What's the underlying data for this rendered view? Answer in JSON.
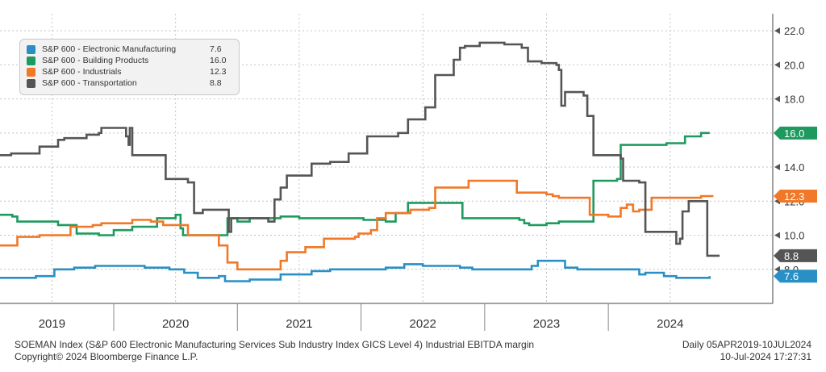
{
  "chart_data": {
    "type": "line",
    "title": "SOEMAN Index (S&P 600 Electronic Manufacturing Services Sub Industry Index GICS Level 4) Industrial EBITDA margin",
    "xlabel": "",
    "ylabel": "",
    "x_range": [
      2018.58,
      2024.83
    ],
    "ylim": [
      6.0,
      23.0
    ],
    "y_ticks": [
      8.0,
      10.0,
      12.0,
      14.0,
      16.0,
      18.0,
      20.0,
      22.0
    ],
    "y_tick_labels": [
      "8.0",
      "10.0",
      "12.0",
      "14.0",
      "16.0",
      "18.0",
      "20.0",
      "22.0"
    ],
    "x_tick_labels": [
      "2019",
      "2020",
      "2021",
      "2022",
      "2023",
      "2024"
    ],
    "x_label_positions": [
      2019.0,
      2020.0,
      2021.0,
      2022.0,
      2023.0,
      2024.0
    ],
    "year_boundaries": [
      2019.5,
      2020.5,
      2021.5,
      2022.5,
      2023.5
    ],
    "x_gridlines": [
      2019.0,
      2020.0,
      2021.0,
      2022.0,
      2023.0,
      2024.0
    ],
    "grid": true,
    "legend_position": "top-left",
    "series": [
      {
        "name": "S&P 600 - Electronic Manufacturing",
        "last": "7.6",
        "color": "#2a8fc4",
        "points": [
          [
            2018.58,
            7.5
          ],
          [
            2018.87,
            7.6
          ],
          [
            2019.02,
            8.0
          ],
          [
            2019.18,
            8.1
          ],
          [
            2019.35,
            8.2
          ],
          [
            2019.6,
            8.2
          ],
          [
            2019.75,
            8.1
          ],
          [
            2019.95,
            8.0
          ],
          [
            2020.07,
            7.8
          ],
          [
            2020.18,
            7.5
          ],
          [
            2020.35,
            7.6
          ],
          [
            2020.4,
            7.3
          ],
          [
            2020.6,
            7.4
          ],
          [
            2020.85,
            7.7
          ],
          [
            2021.1,
            7.9
          ],
          [
            2021.25,
            8.0
          ],
          [
            2021.55,
            8.0
          ],
          [
            2021.7,
            8.1
          ],
          [
            2021.85,
            8.3
          ],
          [
            2022.0,
            8.2
          ],
          [
            2022.3,
            8.1
          ],
          [
            2022.4,
            8.0
          ],
          [
            2022.7,
            8.0
          ],
          [
            2022.88,
            8.2
          ],
          [
            2022.93,
            8.5
          ],
          [
            2023.05,
            8.5
          ],
          [
            2023.15,
            8.1
          ],
          [
            2023.25,
            8.0
          ],
          [
            2023.55,
            8.0
          ],
          [
            2023.75,
            7.7
          ],
          [
            2023.8,
            7.8
          ],
          [
            2023.95,
            7.6
          ],
          [
            2024.05,
            7.5
          ],
          [
            2024.25,
            7.5
          ],
          [
            2024.32,
            7.6
          ]
        ]
      },
      {
        "name": "S&P 600 - Building Products",
        "last": "16.0",
        "color": "#1f9a5e",
        "points": [
          [
            2018.58,
            11.2
          ],
          [
            2018.68,
            11.1
          ],
          [
            2018.72,
            10.8
          ],
          [
            2018.9,
            10.8
          ],
          [
            2019.05,
            10.6
          ],
          [
            2019.2,
            10.1
          ],
          [
            2019.38,
            10.0
          ],
          [
            2019.5,
            10.3
          ],
          [
            2019.65,
            10.5
          ],
          [
            2019.85,
            11.0
          ],
          [
            2020.0,
            11.2
          ],
          [
            2020.04,
            10.4
          ],
          [
            2020.06,
            10.0
          ],
          [
            2020.3,
            10.0
          ],
          [
            2020.42,
            11.0
          ],
          [
            2020.5,
            10.8
          ],
          [
            2020.6,
            11.0
          ],
          [
            2020.75,
            11.0
          ],
          [
            2020.85,
            11.1
          ],
          [
            2021.0,
            11.0
          ],
          [
            2021.3,
            11.0
          ],
          [
            2021.52,
            10.9
          ],
          [
            2021.7,
            10.8
          ],
          [
            2021.78,
            11.3
          ],
          [
            2021.88,
            11.9
          ],
          [
            2022.2,
            11.9
          ],
          [
            2022.28,
            11.9
          ],
          [
            2022.32,
            11.0
          ],
          [
            2022.55,
            11.0
          ],
          [
            2022.75,
            11.0
          ],
          [
            2022.78,
            10.9
          ],
          [
            2022.82,
            10.7
          ],
          [
            2022.86,
            10.6
          ],
          [
            2023.0,
            10.7
          ],
          [
            2023.1,
            10.8
          ],
          [
            2023.33,
            10.8
          ],
          [
            2023.38,
            13.2
          ],
          [
            2023.57,
            13.3
          ],
          [
            2023.6,
            15.3
          ],
          [
            2023.9,
            15.3
          ],
          [
            2023.97,
            15.4
          ],
          [
            2024.08,
            15.4
          ],
          [
            2024.12,
            15.8
          ],
          [
            2024.22,
            15.8
          ],
          [
            2024.25,
            16.0
          ],
          [
            2024.32,
            16.0
          ]
        ]
      },
      {
        "name": "S&P 600 - Industrials",
        "last": "12.3",
        "color": "#f07828",
        "points": [
          [
            2018.58,
            9.4
          ],
          [
            2018.69,
            9.4
          ],
          [
            2018.72,
            9.9
          ],
          [
            2018.85,
            9.9
          ],
          [
            2018.9,
            10.0
          ],
          [
            2019.1,
            10.0
          ],
          [
            2019.15,
            10.5
          ],
          [
            2019.28,
            10.5
          ],
          [
            2019.33,
            10.6
          ],
          [
            2019.4,
            10.7
          ],
          [
            2019.6,
            10.7
          ],
          [
            2019.65,
            10.9
          ],
          [
            2019.8,
            10.8
          ],
          [
            2019.9,
            10.6
          ],
          [
            2020.0,
            10.6
          ],
          [
            2020.1,
            10.0
          ],
          [
            2020.35,
            9.4
          ],
          [
            2020.42,
            8.4
          ],
          [
            2020.5,
            8.0
          ],
          [
            2020.78,
            8.0
          ],
          [
            2020.85,
            8.5
          ],
          [
            2020.9,
            9.0
          ],
          [
            2021.0,
            9.0
          ],
          [
            2021.05,
            9.3
          ],
          [
            2021.2,
            9.8
          ],
          [
            2021.45,
            9.9
          ],
          [
            2021.48,
            10.1
          ],
          [
            2021.58,
            10.3
          ],
          [
            2021.63,
            11.0
          ],
          [
            2021.7,
            11.3
          ],
          [
            2021.87,
            11.3
          ],
          [
            2021.9,
            11.5
          ],
          [
            2022.05,
            11.6
          ],
          [
            2022.1,
            12.8
          ],
          [
            2022.25,
            12.8
          ],
          [
            2022.35,
            12.8
          ],
          [
            2022.37,
            13.2
          ],
          [
            2022.6,
            13.2
          ],
          [
            2022.7,
            13.2
          ],
          [
            2022.76,
            12.5
          ],
          [
            2022.9,
            12.5
          ],
          [
            2023.0,
            12.4
          ],
          [
            2023.05,
            12.3
          ],
          [
            2023.1,
            12.2
          ],
          [
            2023.3,
            12.2
          ],
          [
            2023.35,
            11.2
          ],
          [
            2023.5,
            11.1
          ],
          [
            2023.57,
            11.1
          ],
          [
            2023.6,
            11.6
          ],
          [
            2023.65,
            11.8
          ],
          [
            2023.7,
            11.4
          ],
          [
            2023.75,
            11.5
          ],
          [
            2023.85,
            12.2
          ],
          [
            2023.95,
            12.2
          ],
          [
            2024.25,
            12.3
          ],
          [
            2024.35,
            12.3
          ]
        ]
      },
      {
        "name": "S&P 600 - Transportation",
        "last": "8.8",
        "color": "#555555",
        "points": [
          [
            2018.58,
            14.7
          ],
          [
            2018.65,
            14.7
          ],
          [
            2018.67,
            14.8
          ],
          [
            2018.9,
            15.2
          ],
          [
            2019.05,
            15.6
          ],
          [
            2019.1,
            15.7
          ],
          [
            2019.28,
            15.9
          ],
          [
            2019.38,
            16.0
          ],
          [
            2019.4,
            16.3
          ],
          [
            2019.58,
            16.3
          ],
          [
            2019.6,
            15.8
          ],
          [
            2019.62,
            15.3
          ],
          [
            2019.63,
            16.3
          ],
          [
            2019.65,
            14.7
          ],
          [
            2019.85,
            14.7
          ],
          [
            2019.92,
            13.3
          ],
          [
            2020.1,
            13.1
          ],
          [
            2020.15,
            11.3
          ],
          [
            2020.22,
            11.5
          ],
          [
            2020.4,
            11.5
          ],
          [
            2020.43,
            10.2
          ],
          [
            2020.45,
            11.0
          ],
          [
            2020.6,
            11.0
          ],
          [
            2020.72,
            11.0
          ],
          [
            2020.75,
            10.8
          ],
          [
            2020.8,
            12.1
          ],
          [
            2020.85,
            12.8
          ],
          [
            2020.9,
            13.5
          ],
          [
            2021.05,
            13.5
          ],
          [
            2021.1,
            14.2
          ],
          [
            2021.25,
            14.3
          ],
          [
            2021.4,
            14.8
          ],
          [
            2021.55,
            15.8
          ],
          [
            2021.8,
            16.0
          ],
          [
            2021.88,
            16.8
          ],
          [
            2022.02,
            17.5
          ],
          [
            2022.1,
            19.4
          ],
          [
            2022.25,
            20.3
          ],
          [
            2022.3,
            21.0
          ],
          [
            2022.34,
            21.1
          ],
          [
            2022.4,
            21.1
          ],
          [
            2022.46,
            21.3
          ],
          [
            2022.6,
            21.3
          ],
          [
            2022.66,
            21.2
          ],
          [
            2022.8,
            21.0
          ],
          [
            2022.85,
            20.2
          ],
          [
            2022.96,
            20.1
          ],
          [
            2023.08,
            20.0
          ],
          [
            2023.1,
            19.7
          ],
          [
            2023.12,
            17.6
          ],
          [
            2023.15,
            18.4
          ],
          [
            2023.3,
            18.2
          ],
          [
            2023.33,
            17.0
          ],
          [
            2023.38,
            14.7
          ],
          [
            2023.6,
            14.5
          ],
          [
            2023.62,
            13.2
          ],
          [
            2023.75,
            13.1
          ],
          [
            2023.8,
            10.2
          ],
          [
            2023.88,
            10.2
          ],
          [
            2023.95,
            10.2
          ],
          [
            2024.05,
            9.5
          ],
          [
            2024.08,
            9.8
          ],
          [
            2024.1,
            11.4
          ],
          [
            2024.15,
            12.0
          ],
          [
            2024.27,
            12.0
          ],
          [
            2024.3,
            8.8
          ],
          [
            2024.4,
            8.8
          ]
        ]
      }
    ]
  },
  "footer": {
    "description": "SOEMAN Index (S&P 600 Electronic Manufacturing Services Sub Industry Index GICS Level 4) Industrial EBITDA margin",
    "copyright": "Copyright© 2024 Bloomberge Finance L.P.",
    "range": "Daily 05APR2019-10JUL2024",
    "timestamp": "10-Jul-2024 17:27:31"
  }
}
